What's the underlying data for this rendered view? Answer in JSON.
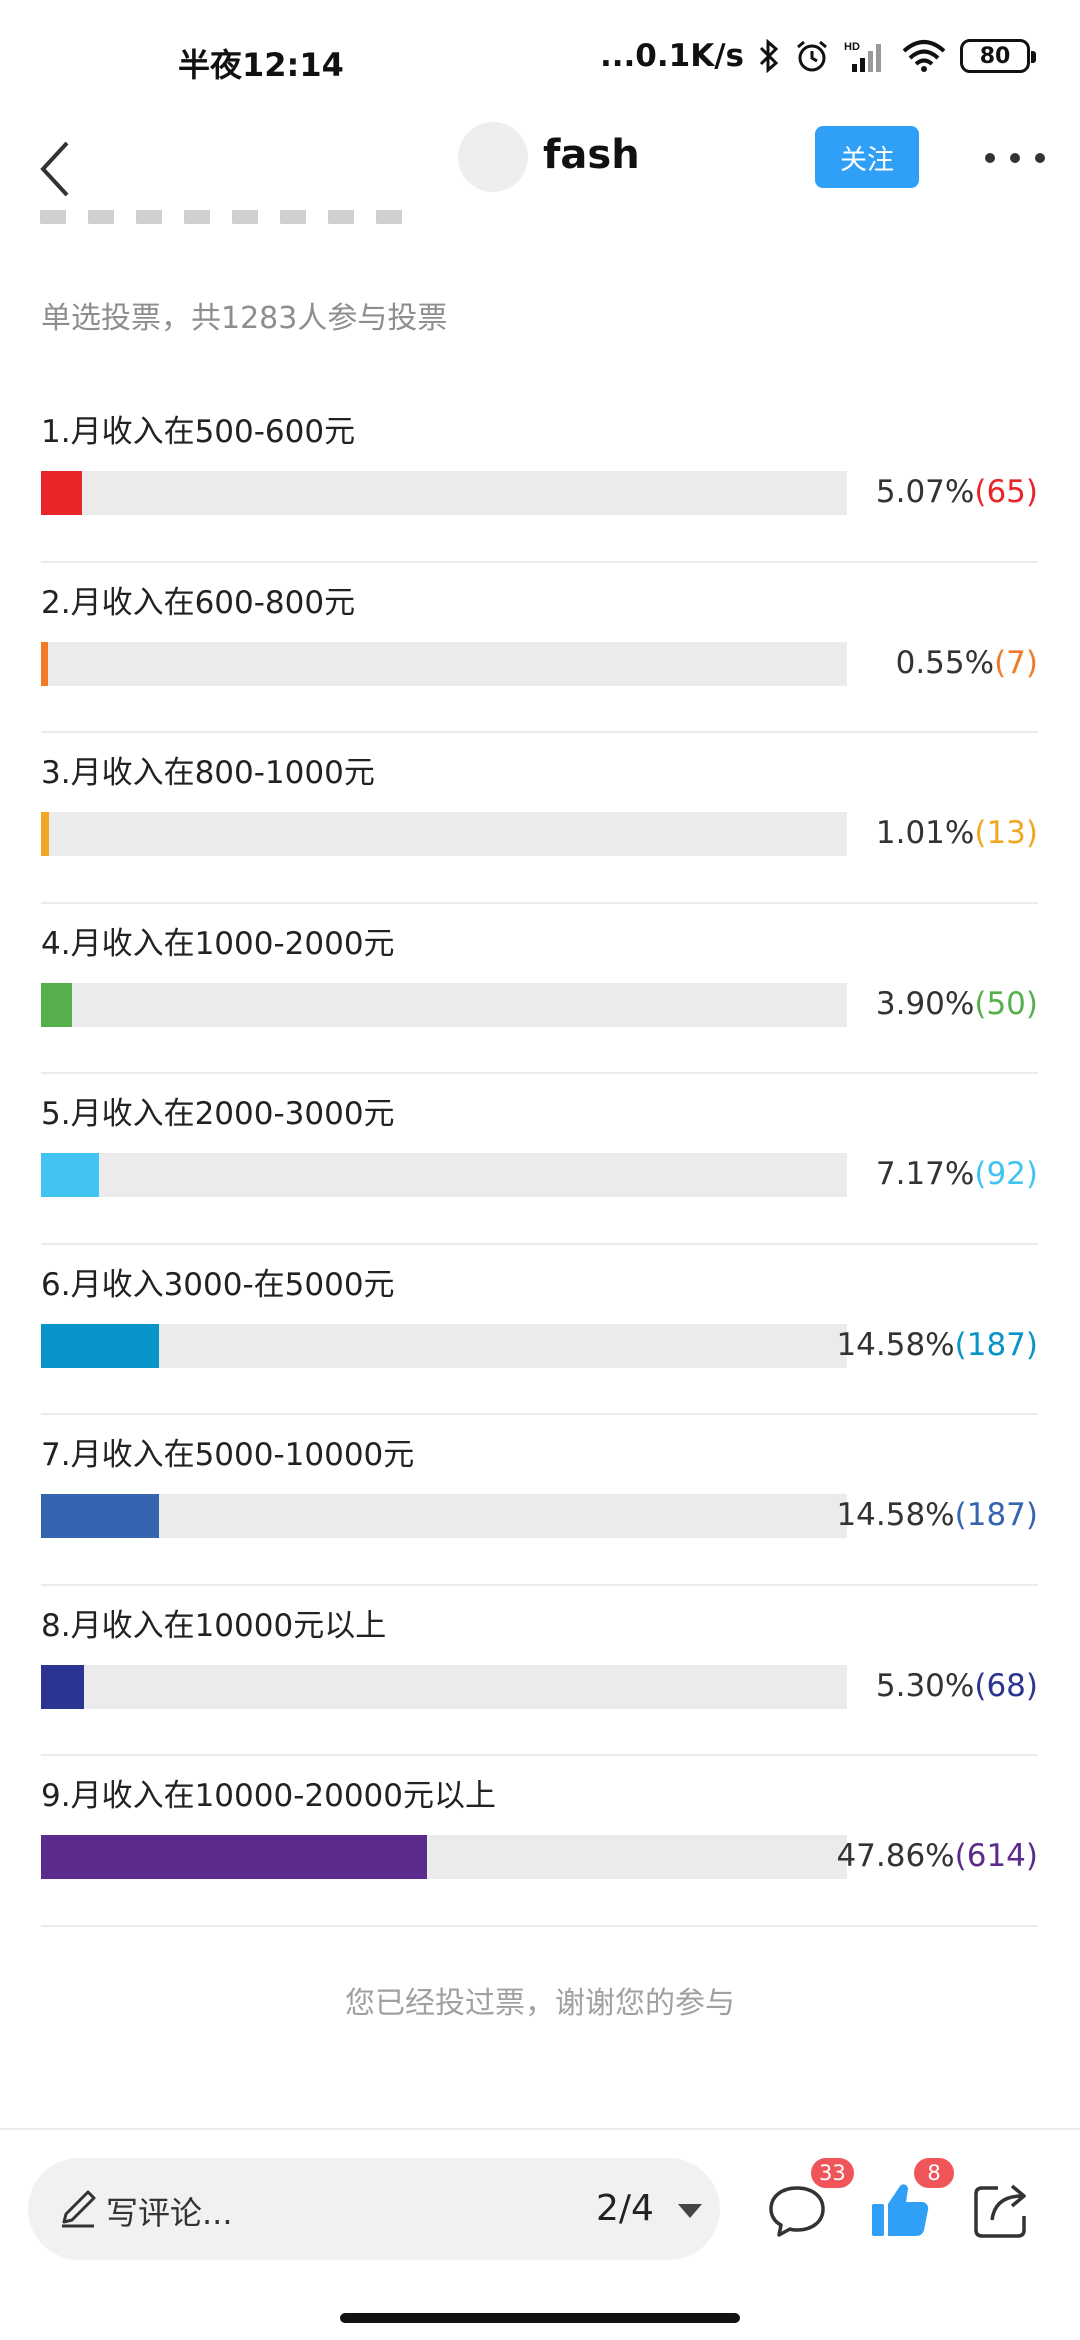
{
  "status_bar": {
    "time": "半夜12:14",
    "network_speed": "...0.1K/s",
    "battery": "80",
    "icons": [
      "bluetooth-icon",
      "alarm-icon",
      "hd-signal-icon",
      "wifi-icon",
      "battery-icon"
    ]
  },
  "header": {
    "username": "fash",
    "follow_label": "关注",
    "icons": [
      "back-arrow-icon",
      "more-dots-icon"
    ]
  },
  "poll": {
    "summary": "单选投票，共1283人参与投票",
    "options": [
      {
        "label": "1.月收入在500-600元",
        "percent": "5.07%",
        "count": "(65)",
        "fraction": 0.0507,
        "color": "#e8262a"
      },
      {
        "label": "2.月收入在600-800元",
        "percent": "0.55%",
        "count": "(7)",
        "fraction": 0.0055,
        "color": "#f07a26"
      },
      {
        "label": "3.月收入在800-1000元",
        "percent": "1.01%",
        "count": "(13)",
        "fraction": 0.0101,
        "color": "#f0a824"
      },
      {
        "label": "4.月收入在1000-2000元",
        "percent": "3.90%",
        "count": "(50)",
        "fraction": 0.039,
        "color": "#56b04c"
      },
      {
        "label": "5.月收入在2000-3000元",
        "percent": "7.17%",
        "count": "(92)",
        "fraction": 0.0717,
        "color": "#41c4f2"
      },
      {
        "label": "6.月收入3000-在5000元",
        "percent": "14.58%",
        "count": "(187)",
        "fraction": 0.1458,
        "color": "#0894c8"
      },
      {
        "label": "7.月收入在5000-10000元",
        "percent": "14.58%",
        "count": "(187)",
        "fraction": 0.1458,
        "color": "#3565b0"
      },
      {
        "label": "8.月收入在10000元以上",
        "percent": "5.30%",
        "count": "(68)",
        "fraction": 0.053,
        "color": "#2b3490"
      },
      {
        "label": "9.月收入在10000-20000元以上",
        "percent": "47.86%",
        "count": "(614)",
        "fraction": 0.4786,
        "color": "#5b2b8e"
      }
    ],
    "voted_note": "您已经投过票，谢谢您的参与"
  },
  "bottom_bar": {
    "comment_placeholder": "写评论...",
    "page_indicator": "2/4",
    "comment_count": "33",
    "like_count": "8",
    "icons": [
      "pen-icon",
      "dropdown-caret-icon",
      "comment-icon",
      "thumbs-up-icon",
      "share-icon"
    ]
  }
}
